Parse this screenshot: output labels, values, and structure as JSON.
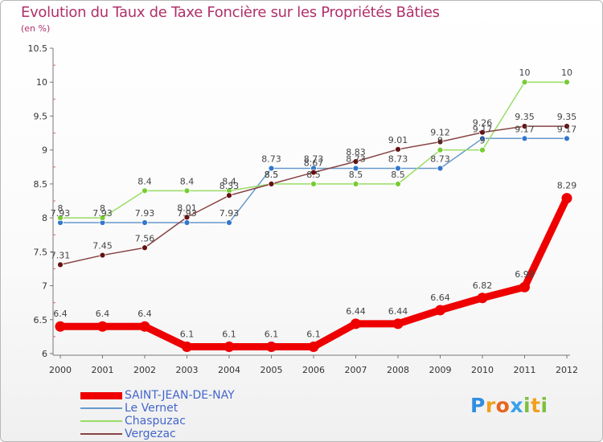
{
  "title": "Evolution du Taux de Taxe Foncière sur les Propriétés Bâties",
  "unit": "(en %)",
  "logo": {
    "letters": [
      "P",
      "r",
      "o",
      "x",
      "i",
      "t",
      "i"
    ],
    "colors": [
      "#2f8ee0",
      "#f0a020",
      "#e8641e",
      "#3aa0e8",
      "#7cc040",
      "#f0a020",
      "#7cc040"
    ]
  },
  "chart_data": {
    "type": "line",
    "title": "Evolution du Taux de Taxe Foncière sur les Propriétés Bâties",
    "ylabel": "(en %)",
    "xlabel": "",
    "categories": [
      "2000",
      "2001",
      "2002",
      "2003",
      "2004",
      "2005",
      "2006",
      "2007",
      "2008",
      "2009",
      "2010",
      "2011",
      "2012"
    ],
    "ylim": [
      6,
      10.5
    ],
    "yticks": [
      "6",
      "6.5",
      "7",
      "7.5",
      "8",
      "8.5",
      "9",
      "9.5",
      "10",
      "10.5"
    ],
    "grid": false,
    "legend_position": "bottom-left",
    "series": [
      {
        "name": "SAINT-JEAN-DE-NAY",
        "color": "#ee0000",
        "thick": true,
        "values": [
          6.4,
          6.4,
          6.4,
          6.1,
          6.1,
          6.1,
          6.1,
          6.44,
          6.44,
          6.64,
          6.82,
          6.98,
          8.29
        ],
        "labels": [
          "6.4",
          "6.4",
          "6.4",
          "6.1",
          "6.1",
          "6.1",
          "6.1",
          "6.44",
          "6.44",
          "6.64",
          "6.82",
          "6.98",
          "8.29"
        ]
      },
      {
        "name": "Le Vernet",
        "color": "#6699cc",
        "dot": "#3377cc",
        "thick": false,
        "values": [
          7.93,
          7.93,
          7.93,
          7.93,
          7.93,
          8.73,
          8.73,
          8.73,
          8.73,
          8.73,
          9.17,
          9.17,
          9.17
        ],
        "labels": [
          "7.93",
          "7.93",
          "7.93",
          "7.93",
          "7.93",
          "8.73",
          "8.73",
          "8.73",
          "8.73",
          "8.73",
          "9.17",
          "9.17",
          "9.17"
        ]
      },
      {
        "name": "Chaspuzac",
        "color": "#99dd66",
        "dot": "#77cc33",
        "thick": false,
        "values": [
          8,
          8,
          8.4,
          8.4,
          8.4,
          8.5,
          8.5,
          8.5,
          8.5,
          9,
          9,
          10,
          10
        ],
        "labels": [
          "8",
          "8",
          "8.4",
          "8.4",
          "8.4",
          "8.5",
          "8.5",
          "8.5",
          "8.5",
          "9",
          "9",
          "10",
          "10"
        ]
      },
      {
        "name": "Vergezac",
        "color": "#884444",
        "dot": "#661111",
        "thick": false,
        "values": [
          7.31,
          7.45,
          7.56,
          8.01,
          8.33,
          8.5,
          8.67,
          8.83,
          9.01,
          9.12,
          9.26,
          9.35,
          9.35
        ],
        "labels": [
          "7.31",
          "7.45",
          "7.56",
          "8.01",
          "8.33",
          "8.5",
          "8.67",
          "8.83",
          "9.01",
          "9.12",
          "9.26",
          "9.35",
          "9.35"
        ]
      }
    ]
  }
}
